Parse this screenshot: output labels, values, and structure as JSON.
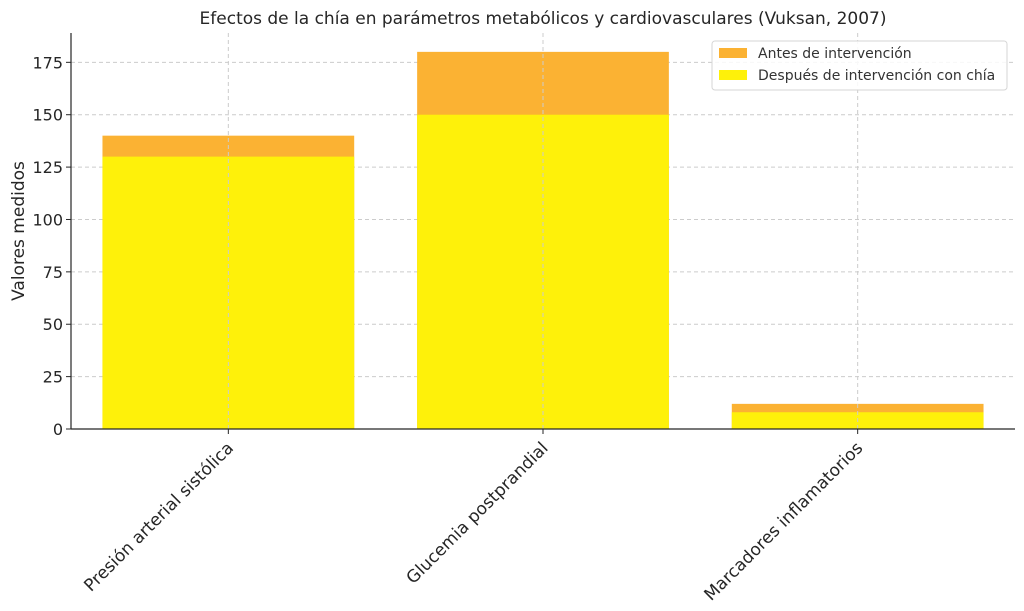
{
  "chart_data": {
    "type": "bar",
    "title": "Efectos de la chía en parámetros metabólicos y cardiovasculares (Vuksan, 2007)",
    "xlabel": "",
    "ylabel": "Valores medidos",
    "categories": [
      "Presión arterial sistólica",
      "Glucemia postprandial",
      "Marcadores inflamatorios"
    ],
    "series": [
      {
        "name": "Antes de intervención",
        "values": [
          140,
          180,
          12
        ],
        "color": "#fbb233"
      },
      {
        "name": "Después de intervención con chía",
        "values": [
          130,
          150,
          8
        ],
        "color": "#fef10a"
      }
    ],
    "ylim": [
      0,
      189
    ],
    "yticks": [
      0,
      25,
      50,
      75,
      100,
      125,
      150,
      175
    ],
    "grid": true,
    "legend_position": "top-right",
    "overlay": true
  }
}
